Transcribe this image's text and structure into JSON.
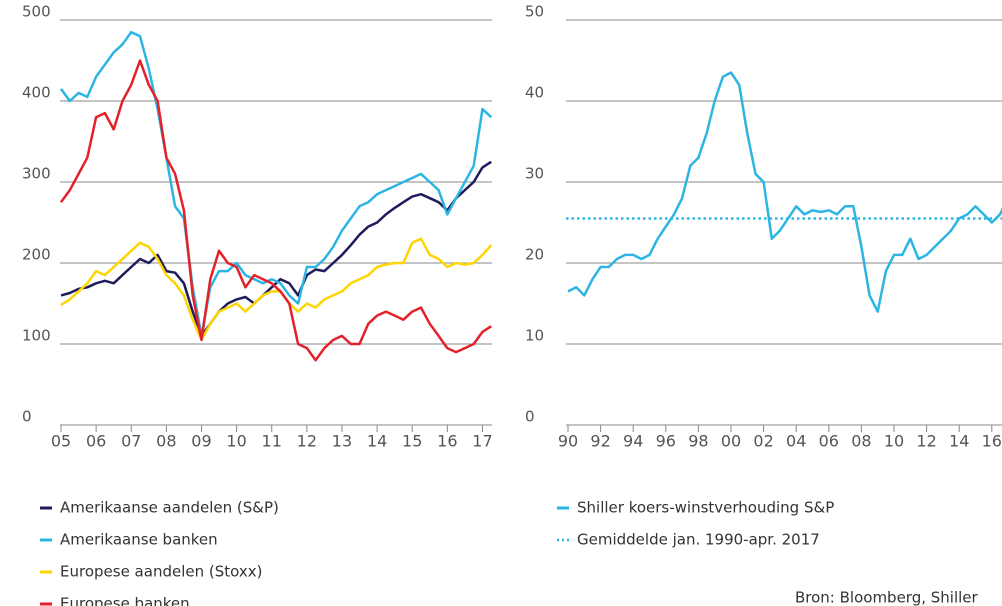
{
  "chart_data": [
    {
      "type": "line",
      "x": [
        2005,
        2005.25,
        2005.5,
        2005.75,
        2006,
        2006.25,
        2006.5,
        2006.75,
        2007,
        2007.25,
        2007.5,
        2007.75,
        2008,
        2008.25,
        2008.5,
        2008.75,
        2009,
        2009.25,
        2009.5,
        2009.75,
        2010,
        2010.25,
        2010.5,
        2010.75,
        2011,
        2011.25,
        2011.5,
        2011.75,
        2012,
        2012.25,
        2012.5,
        2012.75,
        2013,
        2013.25,
        2013.5,
        2013.75,
        2014,
        2014.25,
        2014.5,
        2014.75,
        2015,
        2015.25,
        2015.5,
        2015.75,
        2016,
        2016.25,
        2016.5,
        2016.75,
        2017,
        2017.25
      ],
      "series": [
        {
          "name": "Amerikaanse aandelen (S&P)",
          "color": "#1f1c5c",
          "values": [
            160,
            163,
            168,
            170,
            175,
            178,
            175,
            185,
            195,
            205,
            200,
            210,
            190,
            188,
            175,
            140,
            110,
            125,
            140,
            150,
            155,
            158,
            150,
            160,
            170,
            180,
            175,
            160,
            185,
            192,
            190,
            200,
            210,
            222,
            235,
            245,
            250,
            260,
            268,
            275,
            282,
            285,
            280,
            275,
            265,
            280,
            290,
            300,
            318,
            325
          ]
        },
        {
          "name": "Amerikaanse banken",
          "color": "#2cb5e3",
          "values": [
            415,
            400,
            410,
            405,
            430,
            445,
            460,
            470,
            485,
            480,
            440,
            390,
            330,
            270,
            255,
            170,
            110,
            170,
            190,
            190,
            200,
            185,
            180,
            175,
            180,
            175,
            160,
            150,
            195,
            195,
            205,
            220,
            240,
            255,
            270,
            275,
            285,
            290,
            295,
            300,
            305,
            310,
            300,
            290,
            260,
            280,
            300,
            320,
            390,
            380
          ]
        },
        {
          "name": "Europese aandelen (Stoxx)",
          "color": "#ffd500",
          "values": [
            148,
            155,
            165,
            175,
            190,
            185,
            195,
            205,
            215,
            225,
            220,
            205,
            185,
            175,
            160,
            130,
            105,
            125,
            140,
            145,
            150,
            140,
            150,
            160,
            165,
            165,
            150,
            140,
            150,
            145,
            155,
            160,
            165,
            175,
            180,
            185,
            195,
            198,
            200,
            200,
            225,
            230,
            210,
            205,
            195,
            200,
            198,
            200,
            210,
            222
          ]
        },
        {
          "name": "Europese banken",
          "color": "#e4202a",
          "values": [
            275,
            290,
            310,
            330,
            380,
            385,
            365,
            400,
            420,
            450,
            420,
            400,
            330,
            310,
            265,
            160,
            105,
            180,
            215,
            200,
            195,
            170,
            185,
            180,
            175,
            165,
            150,
            100,
            95,
            80,
            95,
            105,
            110,
            100,
            100,
            125,
            135,
            140,
            135,
            130,
            140,
            145,
            125,
            110,
            95,
            90,
            95,
            100,
            115,
            122
          ]
        }
      ],
      "xlim": [
        2005,
        2017.3
      ],
      "xticks": [
        {
          "value": 2005,
          "label": "05"
        },
        {
          "value": 2006,
          "label": "06"
        },
        {
          "value": 2007,
          "label": "07"
        },
        {
          "value": 2008,
          "label": "08"
        },
        {
          "value": 2009,
          "label": "09"
        },
        {
          "value": 2010,
          "label": "10"
        },
        {
          "value": 2011,
          "label": "11"
        },
        {
          "value": 2012,
          "label": "12"
        },
        {
          "value": 2013,
          "label": "13"
        },
        {
          "value": 2014,
          "label": "14"
        },
        {
          "value": 2015,
          "label": "15"
        },
        {
          "value": 2016,
          "label": "16"
        },
        {
          "value": 2017,
          "label": "17"
        }
      ],
      "ylim": [
        0,
        500
      ],
      "yticks": [
        0,
        100,
        200,
        300,
        400,
        500
      ],
      "grid": true
    },
    {
      "type": "line",
      "x": [
        1990,
        1990.5,
        1991,
        1991.5,
        1992,
        1992.5,
        1993,
        1993.5,
        1994,
        1994.5,
        1995,
        1995.5,
        1996,
        1996.5,
        1997,
        1997.5,
        1998,
        1998.5,
        1999,
        1999.5,
        2000,
        2000.5,
        2001,
        2001.5,
        2002,
        2002.5,
        2003,
        2003.5,
        2004,
        2004.5,
        2005,
        2005.5,
        2006,
        2006.5,
        2007,
        2007.5,
        2008,
        2008.5,
        2009,
        2009.5,
        2010,
        2010.5,
        2011,
        2011.5,
        2012,
        2012.5,
        2013,
        2013.5,
        2014,
        2014.5,
        2015,
        2015.5,
        2016,
        2016.5,
        2017
      ],
      "series": [
        {
          "name": "Shiller koers-winstverhouding S&P",
          "color": "#2cb5e3",
          "values": [
            16.5,
            17,
            16,
            18,
            19.5,
            19.5,
            20.5,
            21,
            21,
            20.5,
            21,
            23,
            24.5,
            26,
            28,
            32,
            33,
            36,
            40,
            43,
            43.5,
            42,
            36,
            31,
            30,
            23,
            24,
            25.5,
            27,
            26,
            26.5,
            26.3,
            26.5,
            26,
            27,
            27,
            22,
            16,
            14,
            19,
            21,
            21,
            23,
            20.5,
            21,
            22,
            23,
            24,
            25.5,
            26,
            27,
            26,
            25,
            26,
            28
          ]
        }
      ],
      "reference_line": {
        "name": "Gemiddelde jan. 1990-apr. 2017",
        "color": "#2cb5e3",
        "value": 25.5
      },
      "xlim": [
        1990,
        2017.3
      ],
      "xticks": [
        {
          "value": 1990,
          "label": "90"
        },
        {
          "value": 1992,
          "label": "92"
        },
        {
          "value": 1994,
          "label": "94"
        },
        {
          "value": 1996,
          "label": "96"
        },
        {
          "value": 1998,
          "label": "98"
        },
        {
          "value": 2000,
          "label": "00"
        },
        {
          "value": 2002,
          "label": "02"
        },
        {
          "value": 2004,
          "label": "04"
        },
        {
          "value": 2006,
          "label": "06"
        },
        {
          "value": 2008,
          "label": "08"
        },
        {
          "value": 2010,
          "label": "10"
        },
        {
          "value": 2012,
          "label": "12"
        },
        {
          "value": 2014,
          "label": "14"
        },
        {
          "value": 2016,
          "label": "16"
        }
      ],
      "ylim": [
        0,
        50
      ],
      "yticks": [
        0,
        10,
        20,
        30,
        40,
        50
      ],
      "grid": true
    }
  ],
  "source": "Bron: Bloomberg, Shiller"
}
